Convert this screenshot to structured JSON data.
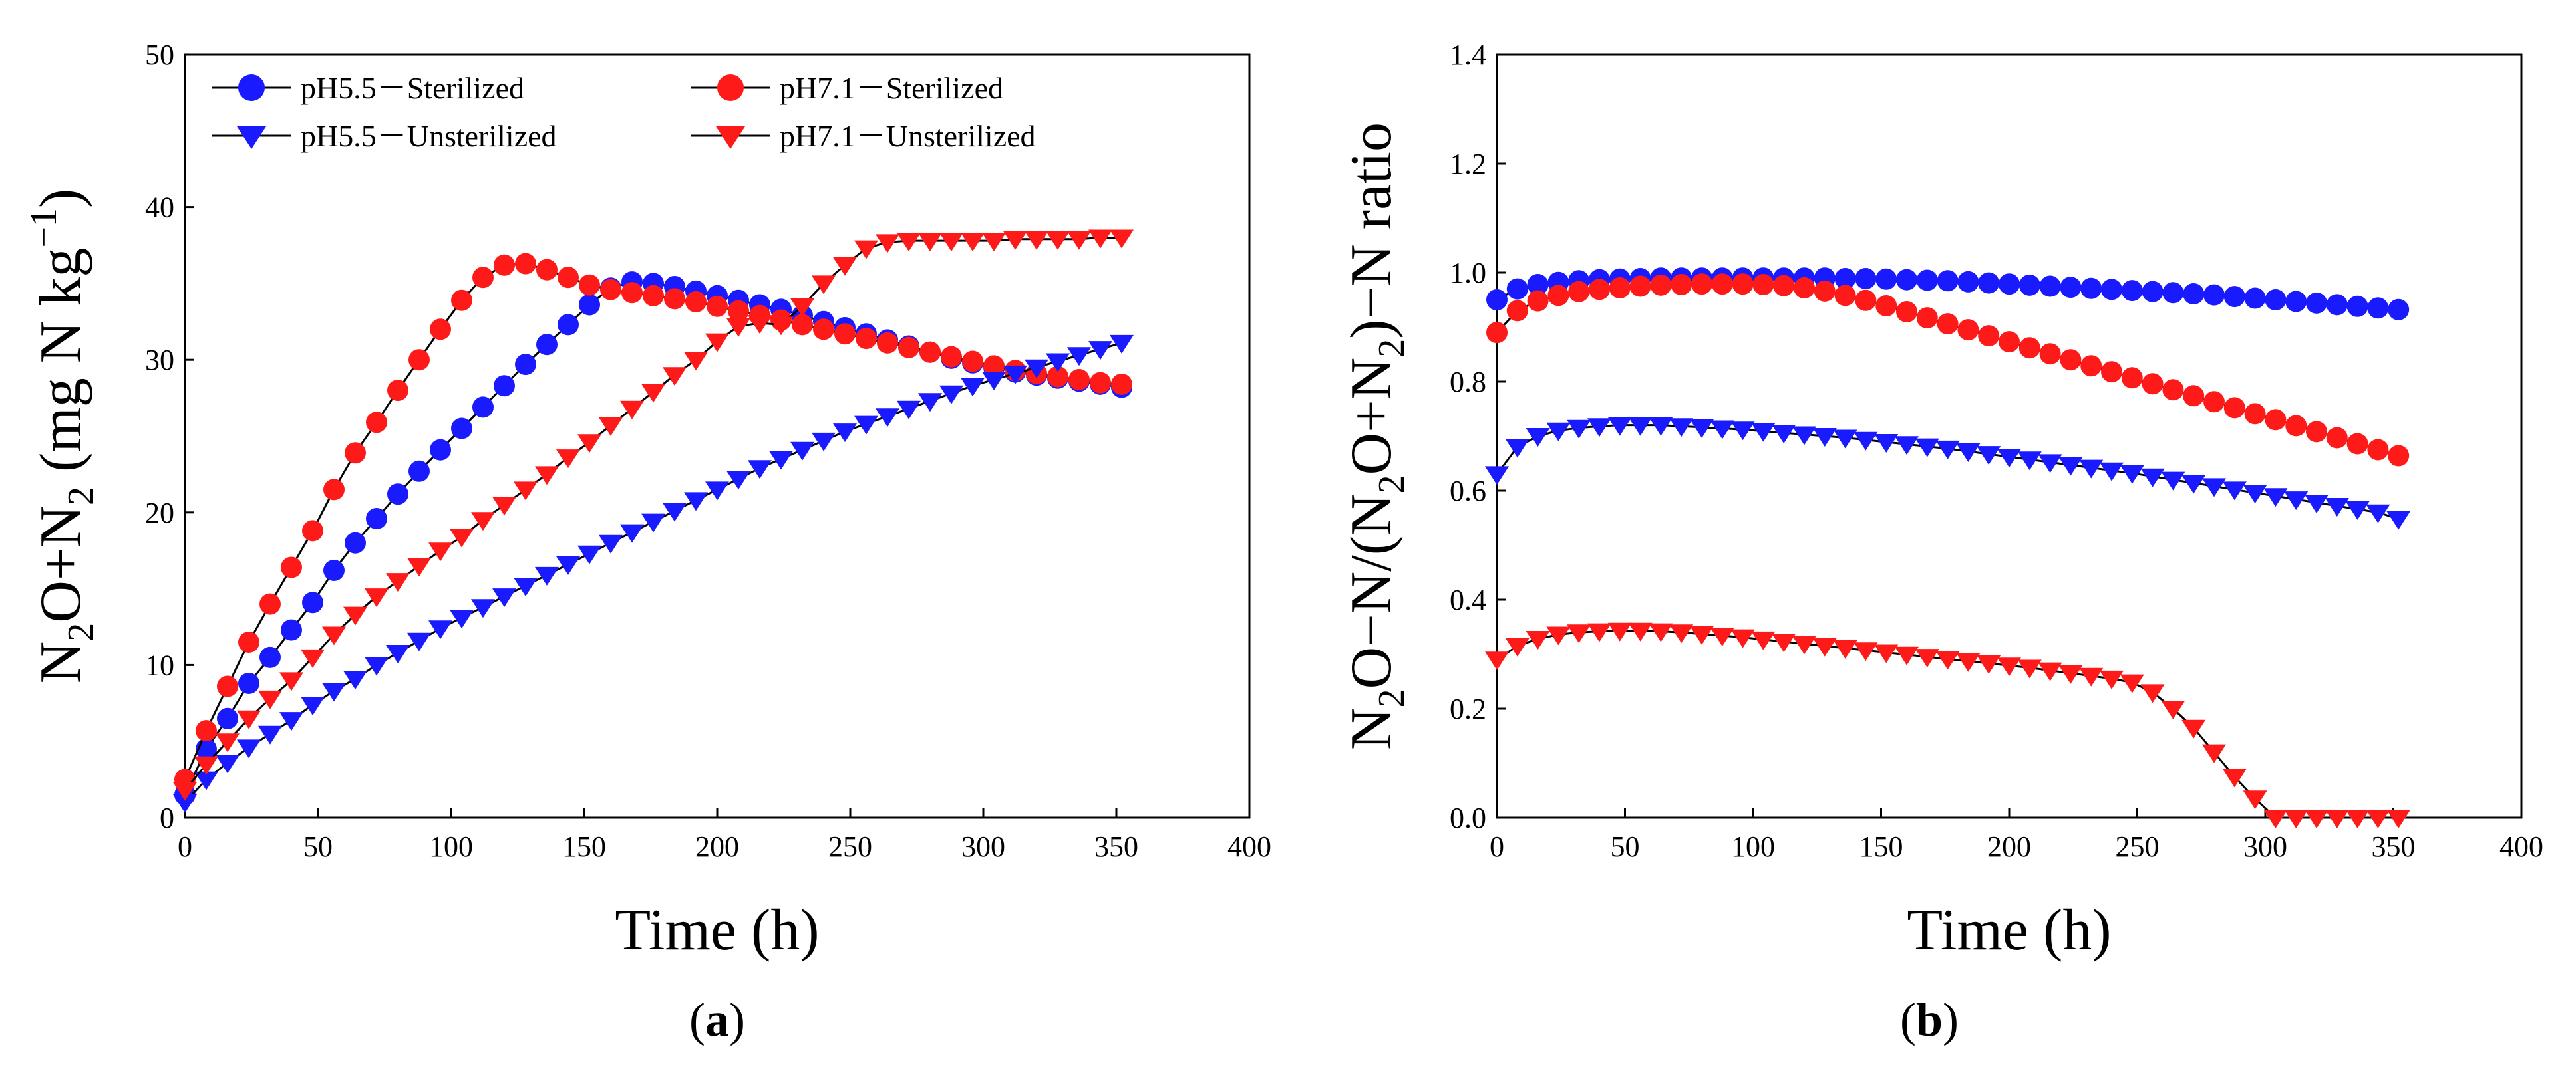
{
  "figure": {
    "colors": {
      "blue": "#1a1aff",
      "red": "#ff1a1a",
      "line": "#000000"
    }
  },
  "chart_data": [
    {
      "type": "line",
      "panel": "a",
      "panel_label_open": "(",
      "panel_label_letter": "a",
      "panel_label_close": ")",
      "xlabel": "Time (h)",
      "ylabel_parts": {
        "n1": "N",
        "sub1": "2",
        "mid": "O+N",
        "sub2": "2",
        "unit_open": " (mg N kg",
        "sup": "−1",
        "unit_close": ")"
      },
      "xlim": [
        0,
        400
      ],
      "ylim": [
        0,
        50
      ],
      "xticks": [
        0,
        50,
        100,
        150,
        200,
        250,
        300,
        350,
        400
      ],
      "yticks": [
        0,
        10,
        20,
        30,
        40,
        50
      ],
      "legend_position": "top",
      "series": [
        {
          "name": "pH5.5－Sterilized",
          "color": "#1a1aff",
          "marker": "circle",
          "x": [
            0,
            8,
            16,
            24,
            32,
            40,
            48,
            56,
            64,
            72,
            80,
            88,
            96,
            104,
            112,
            120,
            128,
            136,
            144,
            152,
            160,
            168,
            176,
            184,
            192,
            200,
            208,
            216,
            224,
            232,
            240,
            248,
            256,
            264,
            272,
            280,
            288,
            296,
            304,
            312,
            320,
            328,
            336,
            344,
            352
          ],
          "y": [
            1.5,
            4.5,
            6.5,
            8.8,
            10.5,
            12.3,
            14.1,
            16.2,
            18.0,
            19.6,
            21.2,
            22.7,
            24.1,
            25.5,
            26.9,
            28.3,
            29.7,
            31.0,
            32.3,
            33.6,
            34.7,
            35.1,
            35.0,
            34.8,
            34.5,
            34.2,
            33.9,
            33.6,
            33.3,
            32.9,
            32.5,
            32.1,
            31.7,
            31.3,
            30.9,
            30.5,
            30.1,
            29.8,
            29.5,
            29.2,
            29.0,
            28.8,
            28.6,
            28.4,
            28.2
          ]
        },
        {
          "name": "pH7.1－Sterilized",
          "color": "#ff1a1a",
          "marker": "circle",
          "x": [
            0,
            8,
            16,
            24,
            32,
            40,
            48,
            56,
            64,
            72,
            80,
            88,
            96,
            104,
            112,
            120,
            128,
            136,
            144,
            152,
            160,
            168,
            176,
            184,
            192,
            200,
            208,
            216,
            224,
            232,
            240,
            248,
            256,
            264,
            272,
            280,
            288,
            296,
            304,
            312,
            320,
            328,
            336,
            344,
            352
          ],
          "y": [
            2.5,
            5.7,
            8.6,
            11.5,
            14.0,
            16.4,
            18.8,
            21.5,
            23.9,
            25.9,
            28.0,
            30.0,
            32.0,
            33.9,
            35.4,
            36.2,
            36.3,
            35.9,
            35.4,
            34.9,
            34.6,
            34.4,
            34.2,
            34.0,
            33.8,
            33.5,
            33.2,
            32.9,
            32.6,
            32.3,
            32.0,
            31.7,
            31.4,
            31.1,
            30.8,
            30.5,
            30.2,
            29.9,
            29.6,
            29.3,
            29.1,
            28.9,
            28.7,
            28.5,
            28.4
          ]
        },
        {
          "name": "pH5.5－Unsterilized",
          "color": "#1a1aff",
          "marker": "triangle-down",
          "x": [
            0,
            8,
            16,
            24,
            32,
            40,
            48,
            56,
            64,
            72,
            80,
            88,
            96,
            104,
            112,
            120,
            128,
            136,
            144,
            152,
            160,
            168,
            176,
            184,
            192,
            200,
            208,
            216,
            224,
            232,
            240,
            248,
            256,
            264,
            272,
            280,
            288,
            296,
            304,
            312,
            320,
            328,
            336,
            344,
            352
          ],
          "y": [
            1.0,
            2.5,
            3.6,
            4.6,
            5.5,
            6.4,
            7.4,
            8.3,
            9.1,
            10.0,
            10.8,
            11.6,
            12.4,
            13.1,
            13.8,
            14.5,
            15.2,
            15.9,
            16.6,
            17.3,
            18.0,
            18.7,
            19.4,
            20.1,
            20.8,
            21.5,
            22.2,
            22.9,
            23.5,
            24.1,
            24.7,
            25.3,
            25.8,
            26.3,
            26.8,
            27.3,
            27.8,
            28.3,
            28.7,
            29.1,
            29.5,
            29.9,
            30.3,
            30.7,
            31.1
          ]
        },
        {
          "name": "pH7.1－Unsterilized",
          "color": "#ff1a1a",
          "marker": "triangle-down",
          "x": [
            0,
            8,
            16,
            24,
            32,
            40,
            48,
            56,
            64,
            72,
            80,
            88,
            96,
            104,
            112,
            120,
            128,
            136,
            144,
            152,
            160,
            168,
            176,
            184,
            192,
            200,
            208,
            216,
            224,
            232,
            240,
            248,
            256,
            264,
            272,
            280,
            288,
            296,
            304,
            312,
            320,
            328,
            336,
            344,
            352
          ],
          "y": [
            1.8,
            3.5,
            5.0,
            6.5,
            7.8,
            9.0,
            10.5,
            12.0,
            13.3,
            14.5,
            15.5,
            16.5,
            17.5,
            18.4,
            19.5,
            20.5,
            21.5,
            22.5,
            23.6,
            24.6,
            25.7,
            26.8,
            27.9,
            29.0,
            30.0,
            31.2,
            32.2,
            32.4,
            32.3,
            33.5,
            35.0,
            36.2,
            37.3,
            37.7,
            37.8,
            37.8,
            37.8,
            37.8,
            37.8,
            37.9,
            37.9,
            37.9,
            37.9,
            38.0,
            38.0
          ]
        }
      ]
    },
    {
      "type": "line",
      "panel": "b",
      "panel_label_open": "(",
      "panel_label_letter": "b",
      "panel_label_close": ")",
      "xlabel": "Time (h)",
      "ylabel_parts": {
        "n1": "N",
        "sub1": "2",
        "a": "O−N/(N",
        "sub2": "2",
        "b": "O+N",
        "sub3": "2",
        "c": ")−N ratio"
      },
      "xlim": [
        0,
        400
      ],
      "ylim": [
        0,
        1.4
      ],
      "xticks": [
        0,
        50,
        100,
        150,
        200,
        250,
        300,
        350,
        400
      ],
      "yticks": [
        "0.0",
        "0.2",
        "0.4",
        "0.6",
        "0.8",
        "1.0",
        "1.2",
        "1.4"
      ],
      "series": [
        {
          "name": "pH5.5－Sterilized",
          "color": "#1a1aff",
          "marker": "circle",
          "x": [
            0,
            8,
            16,
            24,
            32,
            40,
            48,
            56,
            64,
            72,
            80,
            88,
            96,
            104,
            112,
            120,
            128,
            136,
            144,
            152,
            160,
            168,
            176,
            184,
            192,
            200,
            208,
            216,
            224,
            232,
            240,
            248,
            256,
            264,
            272,
            280,
            288,
            296,
            304,
            312,
            320,
            328,
            336,
            344,
            352
          ],
          "y": [
            0.95,
            0.97,
            0.978,
            0.982,
            0.985,
            0.987,
            0.988,
            0.989,
            0.99,
            0.99,
            0.99,
            0.99,
            0.99,
            0.99,
            0.99,
            0.99,
            0.99,
            0.989,
            0.989,
            0.988,
            0.987,
            0.986,
            0.985,
            0.983,
            0.981,
            0.979,
            0.977,
            0.975,
            0.973,
            0.971,
            0.969,
            0.967,
            0.965,
            0.963,
            0.961,
            0.959,
            0.956,
            0.953,
            0.95,
            0.947,
            0.944,
            0.941,
            0.938,
            0.935,
            0.932
          ]
        },
        {
          "name": "pH7.1－Sterilized",
          "color": "#ff1a1a",
          "marker": "circle",
          "x": [
            0,
            8,
            16,
            24,
            32,
            40,
            48,
            56,
            64,
            72,
            80,
            88,
            96,
            104,
            112,
            120,
            128,
            136,
            144,
            152,
            160,
            168,
            176,
            184,
            192,
            200,
            208,
            216,
            224,
            232,
            240,
            248,
            256,
            264,
            272,
            280,
            288,
            296,
            304,
            312,
            320,
            328,
            336,
            344,
            352
          ],
          "y": [
            0.89,
            0.93,
            0.948,
            0.958,
            0.965,
            0.969,
            0.972,
            0.975,
            0.977,
            0.978,
            0.979,
            0.979,
            0.979,
            0.978,
            0.976,
            0.972,
            0.966,
            0.958,
            0.949,
            0.939,
            0.928,
            0.917,
            0.906,
            0.895,
            0.884,
            0.873,
            0.862,
            0.851,
            0.84,
            0.829,
            0.818,
            0.807,
            0.796,
            0.785,
            0.774,
            0.763,
            0.752,
            0.741,
            0.73,
            0.719,
            0.708,
            0.697,
            0.686,
            0.675,
            0.664
          ]
        },
        {
          "name": "pH5.5－Unsterilized",
          "color": "#1a1aff",
          "marker": "triangle-down",
          "x": [
            0,
            8,
            16,
            24,
            32,
            40,
            48,
            56,
            64,
            72,
            80,
            88,
            96,
            104,
            112,
            120,
            128,
            136,
            144,
            152,
            160,
            168,
            176,
            184,
            192,
            200,
            208,
            216,
            224,
            232,
            240,
            248,
            256,
            264,
            272,
            280,
            288,
            296,
            304,
            312,
            320,
            328,
            336,
            344,
            352
          ],
          "y": [
            0.63,
            0.68,
            0.7,
            0.71,
            0.715,
            0.718,
            0.72,
            0.72,
            0.72,
            0.718,
            0.716,
            0.714,
            0.712,
            0.709,
            0.706,
            0.703,
            0.7,
            0.697,
            0.693,
            0.689,
            0.685,
            0.681,
            0.677,
            0.672,
            0.667,
            0.662,
            0.657,
            0.652,
            0.647,
            0.642,
            0.637,
            0.632,
            0.626,
            0.62,
            0.614,
            0.608,
            0.602,
            0.596,
            0.59,
            0.584,
            0.578,
            0.572,
            0.566,
            0.56,
            0.548
          ]
        },
        {
          "name": "pH7.1－Unsterilized",
          "color": "#ff1a1a",
          "marker": "triangle-down",
          "x": [
            0,
            8,
            16,
            24,
            32,
            40,
            48,
            56,
            64,
            72,
            80,
            88,
            96,
            104,
            112,
            120,
            128,
            136,
            144,
            152,
            160,
            168,
            176,
            184,
            192,
            200,
            208,
            216,
            224,
            232,
            240,
            248,
            256,
            264,
            272,
            280,
            288,
            296,
            304,
            312,
            320,
            328,
            336,
            344,
            352
          ],
          "y": [
            0.29,
            0.315,
            0.328,
            0.336,
            0.34,
            0.342,
            0.343,
            0.343,
            0.342,
            0.34,
            0.337,
            0.334,
            0.331,
            0.327,
            0.323,
            0.319,
            0.315,
            0.311,
            0.307,
            0.303,
            0.299,
            0.295,
            0.291,
            0.287,
            0.283,
            0.279,
            0.275,
            0.27,
            0.265,
            0.26,
            0.255,
            0.248,
            0.23,
            0.2,
            0.165,
            0.12,
            0.075,
            0.035,
            0.0,
            0.0,
            0.0,
            0.0,
            0.0,
            0.0,
            0.0
          ]
        }
      ]
    }
  ]
}
